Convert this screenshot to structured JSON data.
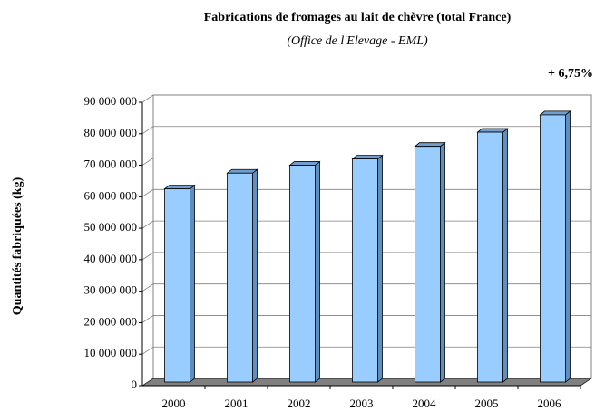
{
  "chart_data": {
    "type": "bar3d",
    "title": "Fabrications de fromages au lait de chèvre (total France)",
    "subtitle": "(Office de l'Elevage - EML)",
    "annotation": "+ 6,75%",
    "y_label": "Quantités fabriquées (kg)",
    "categories": [
      "2000",
      "2001",
      "2002",
      "2003",
      "2004",
      "2005",
      "2006"
    ],
    "values": [
      62500000,
      67500000,
      70000000,
      72000000,
      76000000,
      80500000,
      86000000
    ],
    "color": "#99ccff",
    "ylim": [
      0,
      90000000
    ],
    "yticks": [
      0,
      {
        "value": 10000000,
        "label": "10 000 000"
      },
      {
        "value": 20000000,
        "label": "20 000 000"
      },
      {
        "value": 30000000,
        "label": "30 000 000"
      },
      {
        "value": 40000000,
        "label": "40 000 000"
      },
      {
        "value": 50000000,
        "label": "50 000 000"
      },
      {
        "value": 60000000,
        "label": "60 000 000"
      },
      {
        "value": 70000000,
        "label": "70 000 000"
      },
      {
        "value": 80000000,
        "label": "80 000 000"
      },
      {
        "value": 90000000,
        "label": "90 000 000"
      }
    ],
    "grid": true
  }
}
